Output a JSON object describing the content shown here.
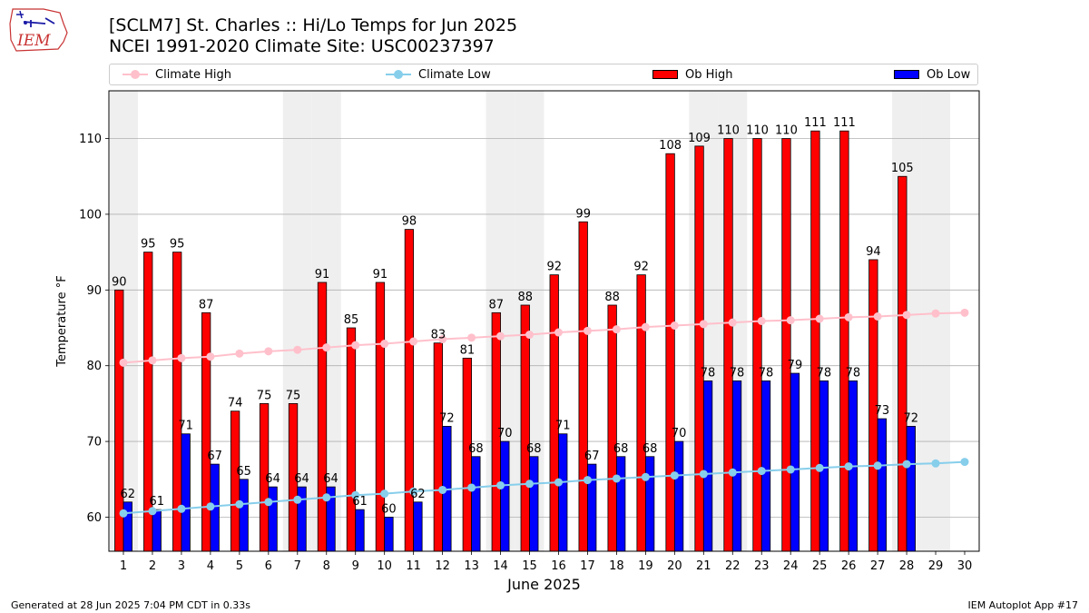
{
  "header": {
    "logo_text": "IEM",
    "title_line1": "[SCLM7] St. Charles :: Hi/Lo Temps for Jun 2025",
    "title_line2": "NCEI 1991-2020 Climate Site: USC00237397"
  },
  "footer": {
    "left": "Generated at 28 Jun 2025 7:04 PM CDT in 0.33s",
    "right": "IEM Autoplot App #17"
  },
  "chart_data": {
    "type": "bar",
    "xlabel": "June 2025",
    "ylabel": "Temperature °F",
    "ylim": [
      55.5,
      116.3
    ],
    "yticks": [
      60,
      70,
      80,
      90,
      100,
      110
    ],
    "grid": "horizontal",
    "legend_position": "top",
    "x": [
      1,
      2,
      3,
      4,
      5,
      6,
      7,
      8,
      9,
      10,
      11,
      12,
      13,
      14,
      15,
      16,
      17,
      18,
      19,
      20,
      21,
      22,
      23,
      24,
      25,
      26,
      27,
      28,
      29,
      30
    ],
    "weekend_shading": [
      1,
      7,
      8,
      14,
      15,
      21,
      22,
      28,
      29
    ],
    "series": [
      {
        "name": "Climate High",
        "kind": "line",
        "color": "#ffc0cb",
        "values": [
          80.4,
          80.7,
          81.0,
          81.2,
          81.6,
          81.9,
          82.1,
          82.4,
          82.7,
          82.9,
          83.2,
          83.5,
          83.7,
          83.9,
          84.1,
          84.4,
          84.6,
          84.8,
          85.1,
          85.3,
          85.5,
          85.7,
          85.9,
          86.0,
          86.2,
          86.4,
          86.5,
          86.7,
          86.9,
          87.0
        ]
      },
      {
        "name": "Climate Low",
        "kind": "line",
        "color": "#87ceeb",
        "values": [
          60.5,
          60.8,
          61.1,
          61.4,
          61.7,
          62.0,
          62.3,
          62.6,
          62.9,
          63.1,
          63.4,
          63.6,
          63.9,
          64.2,
          64.4,
          64.6,
          64.9,
          65.1,
          65.3,
          65.5,
          65.7,
          65.9,
          66.1,
          66.3,
          66.5,
          66.7,
          66.8,
          67.0,
          67.1,
          67.3
        ]
      },
      {
        "name": "Ob High",
        "kind": "bar",
        "color": "#ff0000",
        "values": [
          90,
          95,
          95,
          87,
          74,
          75,
          75,
          91,
          85,
          91,
          98,
          83,
          81,
          87,
          88,
          92,
          99,
          88,
          92,
          108,
          109,
          110,
          110,
          110,
          111,
          111,
          94,
          105,
          null,
          null
        ]
      },
      {
        "name": "Ob Low",
        "kind": "bar",
        "color": "#0000ff",
        "values": [
          62,
          61,
          71,
          67,
          65,
          64,
          64,
          64,
          61,
          60,
          62,
          72,
          68,
          70,
          68,
          71,
          67,
          68,
          68,
          70,
          78,
          78,
          78,
          79,
          78,
          78,
          73,
          72,
          null,
          null
        ]
      }
    ]
  }
}
